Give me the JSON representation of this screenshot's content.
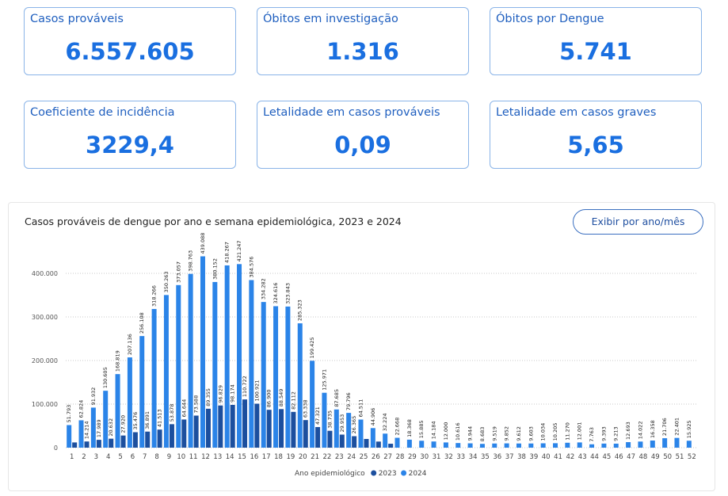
{
  "cards": [
    {
      "label": "Casos prováveis",
      "value": "6.557.605"
    },
    {
      "label": "Óbitos em investigação",
      "value": "1.316"
    },
    {
      "label": "Óbitos por Dengue",
      "value": "5.741"
    },
    {
      "label": "Coeficiente de incidência",
      "value": "3229,4"
    },
    {
      "label": "Letalidade em casos prováveis",
      "value": "0,09"
    },
    {
      "label": "Letalidade em casos graves",
      "value": "5,65"
    }
  ],
  "button": "Exibir por ano/mês",
  "chart_data": {
    "type": "bar",
    "title": "Casos prováveis de dengue por ano e semana epidemiológica, 2023 e 2024",
    "legend_title": "Ano epidemiológico",
    "categories": [
      "1",
      "2",
      "3",
      "4",
      "5",
      "6",
      "7",
      "8",
      "9",
      "10",
      "11",
      "12",
      "13",
      "14",
      "15",
      "16",
      "17",
      "18",
      "19",
      "20",
      "21",
      "22",
      "23",
      "24",
      "25",
      "26",
      "27",
      "28",
      "29",
      "30",
      "31",
      "32",
      "33",
      "34",
      "35",
      "36",
      "37",
      "38",
      "39",
      "40",
      "41",
      "42",
      "43",
      "44",
      "45",
      "46",
      "47",
      "48",
      "49",
      "50",
      "51",
      "52"
    ],
    "ylim": [
      0,
      450000
    ],
    "yticks": [
      0,
      {
        "value": 100000,
        "label": "100.000"
      },
      {
        "value": 200000,
        "label": "200.000"
      },
      {
        "value": 300000,
        "label": "300.000"
      },
      {
        "value": 400000,
        "label": "400.000"
      }
    ],
    "grid": true,
    "series": [
      {
        "name": "2023",
        "color": "#1c4f9e",
        "values": [
          12000,
          14214,
          17989,
          20632,
          27920,
          35476,
          36891,
          41513,
          53878,
          64644,
          73588,
          89355,
          96829,
          98174,
          110722,
          100921,
          86900,
          88549,
          82112,
          63338,
          47321,
          38735,
          29953,
          26365,
          20000,
          14000,
          9000,
          null,
          null,
          null,
          null,
          null,
          null,
          null,
          null,
          null,
          null,
          null,
          null,
          null,
          null,
          null,
          null,
          null,
          null,
          null,
          null,
          null,
          null,
          null,
          null,
          null
        ],
        "value_labels": [
          null,
          "14.214",
          "17.989",
          "20.632",
          "27.920",
          "35.476",
          "36.891",
          "41.513",
          "53.878",
          "64.644",
          "73.588",
          "89.355",
          "96.829",
          "98.174",
          "110.722",
          "100.921",
          "86.900",
          "88.549",
          "82.112",
          "63.338",
          "47.321",
          "38.735",
          "29.953",
          "26.365",
          null,
          null,
          null,
          null,
          null,
          null,
          null,
          null,
          null,
          null,
          null,
          null,
          null,
          null,
          null,
          null,
          null,
          null,
          null,
          null,
          null,
          null,
          null,
          null,
          null,
          null,
          null,
          null
        ]
      },
      {
        "name": "2024",
        "color": "#2b84e8",
        "values": [
          51793,
          62824,
          91932,
          130605,
          168819,
          207136,
          256108,
          318266,
          350263,
          373057,
          398763,
          439088,
          380152,
          418267,
          421247,
          384576,
          334282,
          324616,
          323843,
          285323,
          199425,
          125971,
          87685,
          79796,
          64511,
          44906,
          32224,
          22668,
          18368,
          15885,
          14184,
          12000,
          10616,
          9944,
          8683,
          9519,
          9852,
          9612,
          9603,
          10034,
          10205,
          11270,
          12001,
          7763,
          9393,
          9213,
          12693,
          14022,
          16358,
          21706,
          22401,
          15925
        ],
        "value_labels": [
          "51.793",
          "62.824",
          "91.932",
          "130.605",
          "168.819",
          "207.136",
          "256.108",
          "318.266",
          "350.263",
          "373.057",
          "398.763",
          "439.088",
          "380.152",
          "418.267",
          "421.247",
          "384.576",
          "334.282",
          "324.616",
          "323.843",
          "285.323",
          "199.425",
          "125.971",
          "87.685",
          "79.796",
          "64.511",
          "44.906",
          "32.224",
          "22.668",
          "18.368",
          "15.885",
          "14.184",
          "12.000",
          "10.616",
          "9.944",
          "8.683",
          "9.519",
          "9.852",
          "9.612",
          "9.603",
          "10.034",
          "10.205",
          "11.270",
          "12.001",
          "7.763",
          "9.393",
          "9.213",
          "12.693",
          "14.022",
          "16.358",
          "21.706",
          "22.401",
          "15.925"
        ]
      }
    ]
  }
}
